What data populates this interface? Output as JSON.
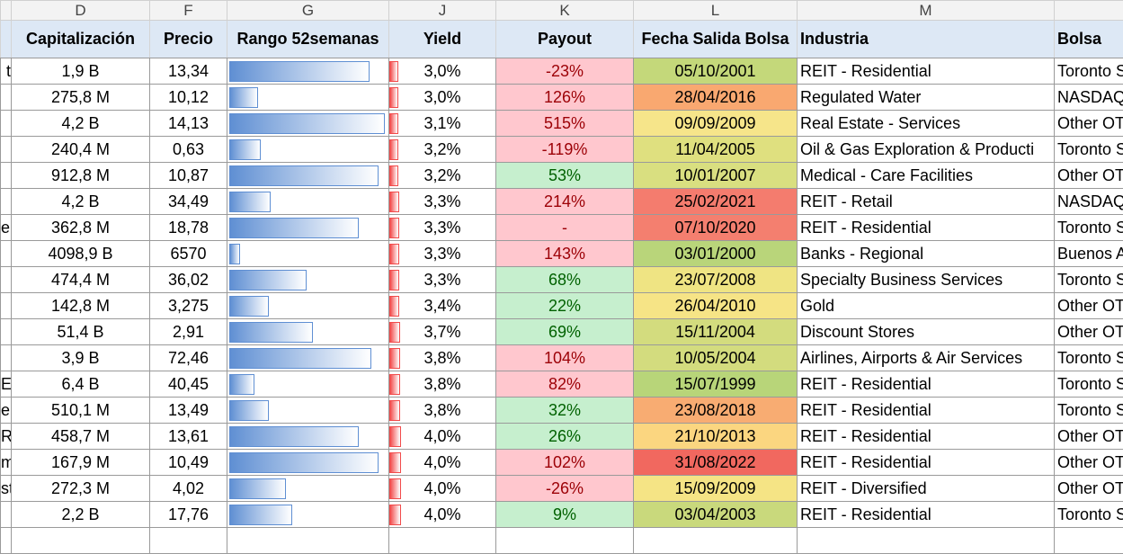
{
  "columns": {
    "letters": [
      "D",
      "F",
      "G",
      "J",
      "K",
      "L",
      "M"
    ],
    "headers": [
      "Capitalización",
      "Precio",
      "Rango 52semanas",
      "Yield",
      "Payout",
      "Fecha Salida Bolsa",
      "Industria",
      "Bolsa"
    ]
  },
  "rows": [
    {
      "prev": "t",
      "cap": "1,9 B",
      "precio": "13,34",
      "rango": 0.89,
      "yield": {
        "value": 3.0,
        "label": "3,0%"
      },
      "payout": "-23%",
      "payout_style": "bad",
      "fecha": "05/10/2001",
      "fecha_color": "#c4d87a",
      "industria": "REIT - Residential",
      "bolsa": "Toronto S"
    },
    {
      "prev": null,
      "cap": "275,8 M",
      "precio": "10,12",
      "rango": 0.18,
      "yield": {
        "value": 3.0,
        "label": "3,0%"
      },
      "payout": "126%",
      "payout_style": "bad",
      "fecha": "28/04/2016",
      "fecha_color": "#f9a870",
      "industria": "Regulated Water",
      "bolsa": "NASDAQ"
    },
    {
      "prev": null,
      "cap": "4,2 B",
      "precio": "14,13",
      "rango": 0.99,
      "yield": {
        "value": 3.1,
        "label": "3,1%"
      },
      "payout": "515%",
      "payout_style": "bad",
      "fecha": "09/09/2009",
      "fecha_color": "#f6e58a",
      "industria": "Real Estate - Services",
      "bolsa": "Other OT"
    },
    {
      "prev": null,
      "cap": "240,4 M",
      "precio": "0,63",
      "rango": 0.2,
      "yield": {
        "value": 3.2,
        "label": "3,2%"
      },
      "payout": "-119%",
      "payout_style": "bad",
      "fecha": "11/04/2005",
      "fecha_color": "#dfe07f",
      "industria": "Oil & Gas Exploration & Producti",
      "bolsa": "Toronto S"
    },
    {
      "prev": null,
      "cap": "912,8 M",
      "precio": "10,87",
      "rango": 0.95,
      "yield": {
        "value": 3.2,
        "label": "3,2%"
      },
      "payout": "53%",
      "payout_style": "good",
      "fecha": "10/01/2007",
      "fecha_color": "#d9df80",
      "industria": "Medical - Care Facilities",
      "bolsa": "Other OT"
    },
    {
      "prev": null,
      "cap": "4,2 B",
      "precio": "34,49",
      "rango": 0.26,
      "yield": {
        "value": 3.3,
        "label": "3,3%"
      },
      "payout": "214%",
      "payout_style": "bad",
      "fecha": "25/02/2021",
      "fecha_color": "#f47c6e",
      "industria": "REIT - Retail",
      "bolsa": "NASDAQ"
    },
    {
      "prev": "e:",
      "cap": "362,8 M",
      "precio": "18,78",
      "rango": 0.82,
      "yield": {
        "value": 3.3,
        "label": "3,3%"
      },
      "payout": "-",
      "payout_style": "bad",
      "fecha": "07/10/2020",
      "fecha_color": "#f47f6f",
      "industria": "REIT - Residential",
      "bolsa": "Toronto S"
    },
    {
      "prev": null,
      "cap": "4098,9 B",
      "precio": "6570",
      "rango": 0.07,
      "yield": {
        "value": 3.3,
        "label": "3,3%"
      },
      "payout": "143%",
      "payout_style": "bad",
      "fecha": "03/01/2000",
      "fecha_color": "#b9d57a",
      "industria": "Banks - Regional",
      "bolsa": "Buenos A"
    },
    {
      "prev": null,
      "cap": "474,4 M",
      "precio": "36,02",
      "rango": 0.49,
      "yield": {
        "value": 3.3,
        "label": "3,3%"
      },
      "payout": "68%",
      "payout_style": "good",
      "fecha": "23/07/2008",
      "fecha_color": "#efe483",
      "industria": "Specialty Business Services",
      "bolsa": "Toronto S"
    },
    {
      "prev": null,
      "cap": "142,8 M",
      "precio": "3,275",
      "rango": 0.25,
      "yield": {
        "value": 3.4,
        "label": "3,4%"
      },
      "payout": "22%",
      "payout_style": "good",
      "fecha": "26/04/2010",
      "fecha_color": "#f6e486",
      "industria": "Gold",
      "bolsa": "Other OT"
    },
    {
      "prev": null,
      "cap": "51,4 B",
      "precio": "2,91",
      "rango": 0.53,
      "yield": {
        "value": 3.7,
        "label": "3,7%"
      },
      "payout": "69%",
      "payout_style": "good",
      "fecha": "15/11/2004",
      "fecha_color": "#d3dc7e",
      "industria": "Discount Stores",
      "bolsa": "Other OT"
    },
    {
      "prev": null,
      "cap": "3,9 B",
      "precio": "72,46",
      "rango": 0.9,
      "yield": {
        "value": 3.8,
        "label": "3,8%"
      },
      "payout": "104%",
      "payout_style": "bad",
      "fecha": "10/05/2004",
      "fecha_color": "#d3dc7e",
      "industria": "Airlines, Airports & Air Services",
      "bolsa": "Toronto S"
    },
    {
      "prev": "Es",
      "cap": "6,4 B",
      "precio": "40,45",
      "rango": 0.16,
      "yield": {
        "value": 3.8,
        "label": "3,8%"
      },
      "payout": "82%",
      "payout_style": "bad",
      "fecha": "15/07/1999",
      "fecha_color": "#b8d579",
      "industria": "REIT - Residential",
      "bolsa": "Toronto S"
    },
    {
      "prev": "er",
      "cap": "510,1 M",
      "precio": "13,49",
      "rango": 0.25,
      "yield": {
        "value": 3.8,
        "label": "3,8%"
      },
      "payout": "32%",
      "payout_style": "good",
      "fecha": "23/08/2018",
      "fecha_color": "#f8ac72",
      "industria": "REIT - Residential",
      "bolsa": "Toronto S"
    },
    {
      "prev": "R",
      "cap": "458,7 M",
      "precio": "13,61",
      "rango": 0.82,
      "yield": {
        "value": 4.0,
        "label": "4,0%"
      },
      "payout": "26%",
      "payout_style": "good",
      "fecha": "21/10/2013",
      "fecha_color": "#fbd680",
      "industria": "REIT - Residential",
      "bolsa": "Other OT"
    },
    {
      "prev": "m",
      "cap": "167,9 M",
      "precio": "10,49",
      "rango": 0.95,
      "yield": {
        "value": 4.0,
        "label": "4,0%"
      },
      "payout": "102%",
      "payout_style": "bad",
      "fecha": "31/08/2022",
      "fecha_color": "#f1685f",
      "industria": "REIT - Residential",
      "bolsa": "Other OT"
    },
    {
      "prev": "st",
      "cap": "272,3 M",
      "precio": "4,02",
      "rango": 0.36,
      "yield": {
        "value": 4.0,
        "label": "4,0%"
      },
      "payout": "-26%",
      "payout_style": "bad",
      "fecha": "15/09/2009",
      "fecha_color": "#f5e485",
      "industria": "REIT - Diversified",
      "bolsa": "Other OT"
    },
    {
      "prev": null,
      "cap": "2,2 B",
      "precio": "17,76",
      "rango": 0.4,
      "yield": {
        "value": 4.0,
        "label": "4,0%"
      },
      "payout": "9%",
      "payout_style": "good",
      "fecha": "03/04/2003",
      "fecha_color": "#c9d97c",
      "industria": "REIT - Residential",
      "bolsa": "Toronto S"
    }
  ]
}
